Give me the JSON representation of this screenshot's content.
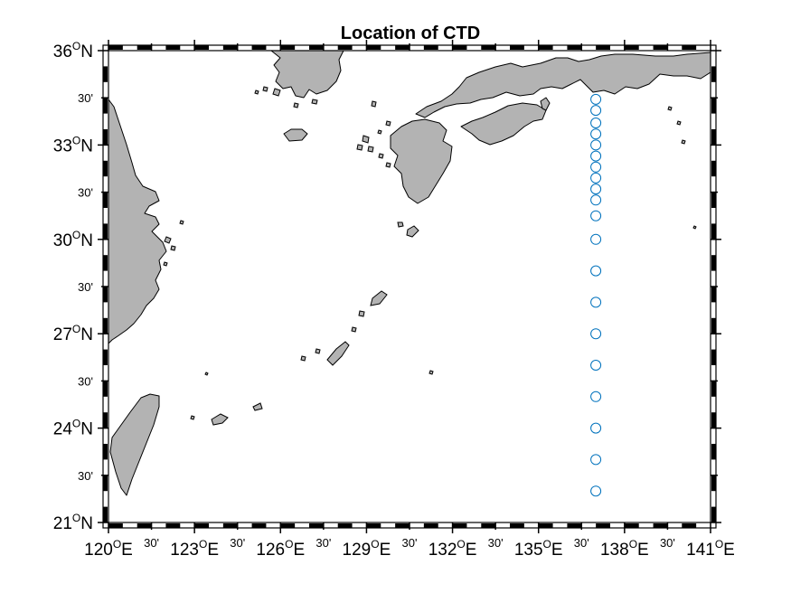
{
  "title": "Location of CTD",
  "map": {
    "lon_range": [
      120,
      141
    ],
    "lat_range": [
      21,
      36
    ],
    "x_ticks": [
      {
        "lon": 120,
        "text": "120",
        "major": true
      },
      {
        "lon": 121.5,
        "text": "30'",
        "major": false
      },
      {
        "lon": 123,
        "text": "123",
        "major": true
      },
      {
        "lon": 124.5,
        "text": "30'",
        "major": false
      },
      {
        "lon": 126,
        "text": "126",
        "major": true
      },
      {
        "lon": 127.5,
        "text": "30'",
        "major": false
      },
      {
        "lon": 129,
        "text": "129",
        "major": true
      },
      {
        "lon": 130.5,
        "text": "30'",
        "major": false
      },
      {
        "lon": 132,
        "text": "132",
        "major": true
      },
      {
        "lon": 133.5,
        "text": "30'",
        "major": false
      },
      {
        "lon": 135,
        "text": "135",
        "major": true
      },
      {
        "lon": 136.5,
        "text": "30'",
        "major": false
      },
      {
        "lon": 138,
        "text": "138",
        "major": true
      },
      {
        "lon": 139.5,
        "text": "30'",
        "major": false
      },
      {
        "lon": 141,
        "text": "141",
        "major": true
      }
    ],
    "y_ticks": [
      {
        "lat": 36,
        "text": "36",
        "major": true
      },
      {
        "lat": 34.5,
        "text": "30'",
        "major": false
      },
      {
        "lat": 33,
        "text": "33",
        "major": true
      },
      {
        "lat": 31.5,
        "text": "30'",
        "major": false
      },
      {
        "lat": 30,
        "text": "30",
        "major": true
      },
      {
        "lat": 28.5,
        "text": "30'",
        "major": false
      },
      {
        "lat": 27,
        "text": "27",
        "major": true
      },
      {
        "lat": 25.5,
        "text": "30'",
        "major": false
      },
      {
        "lat": 24,
        "text": "24",
        "major": true
      },
      {
        "lat": 22.5,
        "text": "30'",
        "major": false
      },
      {
        "lat": 21,
        "text": "21",
        "major": true
      }
    ],
    "lon_suffix": "E",
    "lat_suffix": "N",
    "degree_symbol": "O",
    "land_color": "#b3b3b3",
    "station_color": "#0072bd",
    "stations": {
      "lon": 137.0,
      "lats": [
        34.45,
        34.1,
        33.7,
        33.35,
        33.0,
        32.65,
        32.3,
        31.95,
        31.6,
        31.25,
        30.75,
        30.0,
        29.0,
        28.0,
        27.0,
        26.0,
        25.0,
        24.0,
        23.0,
        22.0
      ]
    }
  }
}
